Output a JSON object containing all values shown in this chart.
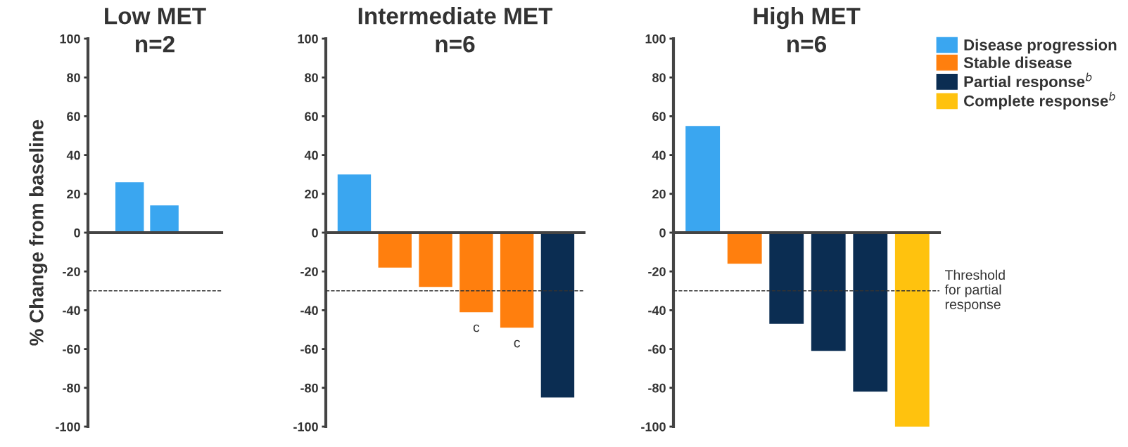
{
  "chart_data": [
    {
      "type": "bar",
      "title": "Low MET",
      "subtitle": "n=2",
      "ylabel": "% Change from baseline",
      "categories": [
        null,
        null
      ],
      "series": [
        {
          "color": "#3aa6f0",
          "values": [
            26,
            14
          ]
        }
      ],
      "ylim": [
        -100,
        100
      ],
      "yticks": [
        -100,
        -80,
        -60,
        -40,
        -20,
        0,
        20,
        40,
        60,
        80,
        100
      ],
      "ref_lines": [
        {
          "axis": "y",
          "value": -30,
          "line_style": "dashed",
          "color": "#333333"
        }
      ]
    },
    {
      "type": "bar",
      "title": "Intermediate MET",
      "subtitle": "n=6",
      "categories": [
        null,
        null,
        null,
        null,
        null,
        null
      ],
      "series": [
        {
          "color": "#3aa6f0",
          "values": [
            30,
            null,
            null,
            null,
            null,
            null
          ]
        },
        {
          "color": "#ff7f0e",
          "values": [
            null,
            -18,
            -28,
            -41,
            -49,
            null
          ]
        },
        {
          "color": "#0b2d52",
          "values": [
            null,
            null,
            null,
            null,
            null,
            -85
          ]
        }
      ],
      "ylim": [
        -100,
        100
      ],
      "yticks": [
        -100,
        -80,
        -60,
        -40,
        -20,
        0,
        20,
        40,
        60,
        80,
        100
      ],
      "annotations": [
        {
          "text": "c",
          "y": -41
        },
        {
          "text": "c",
          "y": -49
        }
      ],
      "ref_lines": [
        {
          "axis": "y",
          "value": -30,
          "line_style": "dashed",
          "color": "#333333"
        }
      ]
    },
    {
      "type": "bar",
      "title": "High MET",
      "subtitle": "n=6",
      "categories": [
        null,
        null,
        null,
        null,
        null,
        null
      ],
      "series": [
        {
          "name": "Disease progression",
          "color": "#3aa6f0",
          "values": [
            55,
            null,
            null,
            null,
            null,
            null
          ]
        },
        {
          "name": "Stable disease",
          "color": "#ff7f0e",
          "values": [
            null,
            -16,
            null,
            null,
            null,
            null
          ]
        },
        {
          "name": "Partial response$^{b}$",
          "color": "#0b2d52",
          "values": [
            null,
            null,
            -47,
            -61,
            -82,
            null
          ]
        },
        {
          "name": "Complete response$^{b}$",
          "color": "#ffc20e",
          "values": [
            null,
            null,
            null,
            null,
            null,
            -100
          ]
        }
      ],
      "ylim": [
        -100,
        100
      ],
      "yticks": [
        -100,
        -80,
        -60,
        -40,
        -20,
        0,
        20,
        40,
        60,
        80,
        100
      ],
      "legend": "top right",
      "ref_lines": [
        {
          "axis": "y",
          "value": -30,
          "label": "Threshold\nfor partial\nresponse",
          "line_style": "dashed",
          "color": "#333333"
        }
      ]
    }
  ]
}
